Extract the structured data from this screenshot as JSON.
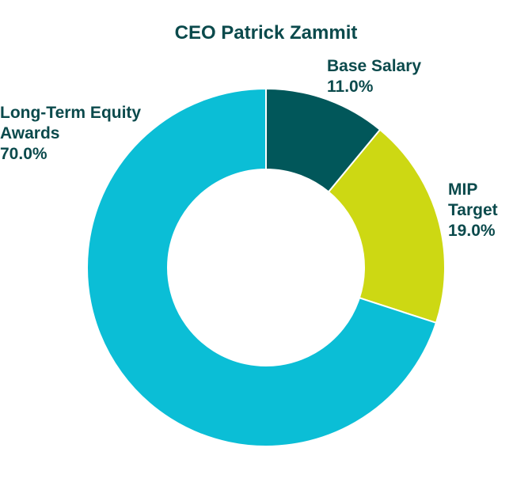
{
  "chart_data": {
    "type": "pie",
    "donut": true,
    "title": "CEO Patrick Zammit",
    "unit": "%",
    "slices": [
      {
        "label": "Base Salary",
        "value": 11.0,
        "value_label": "11.0%",
        "color": "#01575a",
        "label_lines": [
          "Base Salary",
          "11.0%"
        ]
      },
      {
        "label": "MIP Target",
        "value": 19.0,
        "value_label": "19.0%",
        "color": "#cdd813",
        "label_lines": [
          "MIP",
          "Target",
          "19.0%"
        ]
      },
      {
        "label": "Long-Term Equity Awards",
        "value": 70.0,
        "value_label": "70.0%",
        "color": "#0bbed6",
        "label_lines": [
          "Long-Term Equity",
          "Awards",
          "70.0%"
        ]
      }
    ],
    "legend": "none"
  },
  "colors": {
    "title": "#0b4a4c",
    "label": "#0b4a4c",
    "background": "#ffffff"
  }
}
